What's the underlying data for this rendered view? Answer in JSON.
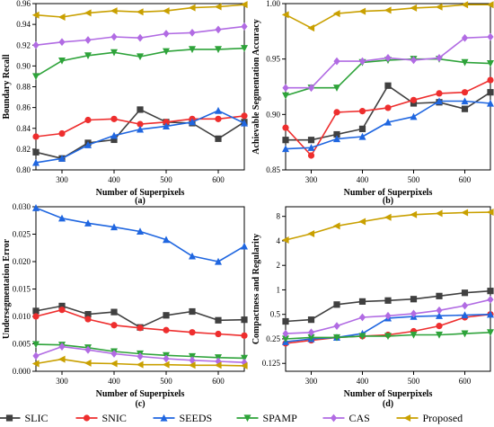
{
  "chart_data": [
    {
      "type": "line",
      "caption": "(a)",
      "xlabel": "Number of Superpixels",
      "ylabel": "Boundary Recall",
      "xlim": [
        250,
        650
      ],
      "ylim": [
        0.8,
        0.96
      ],
      "xticks": [
        300,
        400,
        500,
        600
      ],
      "yticks": [
        0.8,
        0.82,
        0.84,
        0.86,
        0.88,
        0.9,
        0.92,
        0.94,
        0.96
      ],
      "ytick_labels": [
        "0.80",
        "0.82",
        "0.84",
        "0.86",
        "0.88",
        "0.90",
        "0.92",
        "0.94",
        "0.96"
      ],
      "x": [
        250,
        300,
        350,
        400,
        450,
        500,
        550,
        600,
        650
      ],
      "series": [
        {
          "name": "SLIC",
          "values": [
            0.817,
            0.811,
            0.826,
            0.829,
            0.858,
            0.846,
            0.845,
            0.83,
            0.846
          ]
        },
        {
          "name": "SNIC",
          "values": [
            0.832,
            0.835,
            0.848,
            0.849,
            0.844,
            0.846,
            0.849,
            0.849,
            0.852
          ]
        },
        {
          "name": "SEEDS",
          "values": [
            0.807,
            0.811,
            0.824,
            0.833,
            0.839,
            0.842,
            0.846,
            0.857,
            0.845
          ]
        },
        {
          "name": "SPAMP",
          "values": [
            0.89,
            0.905,
            0.91,
            0.913,
            0.909,
            0.914,
            0.916,
            0.916,
            0.917
          ]
        },
        {
          "name": "CAS",
          "values": [
            0.92,
            0.923,
            0.925,
            0.928,
            0.927,
            0.931,
            0.932,
            0.935,
            0.938
          ]
        },
        {
          "name": "Proposed",
          "values": [
            0.949,
            0.947,
            0.951,
            0.953,
            0.952,
            0.953,
            0.956,
            0.957,
            0.959
          ]
        }
      ]
    },
    {
      "type": "line",
      "caption": "(b)",
      "xlabel": "Number of Superpixels",
      "ylabel": "Achievable Segmentation Accuracy",
      "xlim": [
        250,
        650
      ],
      "ylim": [
        0.85,
        1.0
      ],
      "xticks": [
        300,
        400,
        500,
        600
      ],
      "yticks": [
        0.85,
        0.9,
        0.95,
        1.0
      ],
      "ytick_labels": [
        "0.85",
        "0.90",
        "0.95",
        "1.00"
      ],
      "x": [
        250,
        300,
        350,
        400,
        450,
        500,
        550,
        600,
        650
      ],
      "series": [
        {
          "name": "SLIC",
          "values": [
            0.877,
            0.877,
            0.882,
            0.887,
            0.926,
            0.91,
            0.911,
            0.905,
            0.92
          ]
        },
        {
          "name": "SNIC",
          "values": [
            0.888,
            0.863,
            0.902,
            0.903,
            0.906,
            0.913,
            0.919,
            0.92,
            0.931
          ]
        },
        {
          "name": "SEEDS",
          "values": [
            0.869,
            0.87,
            0.878,
            0.88,
            0.893,
            0.898,
            0.912,
            0.912,
            0.91
          ]
        },
        {
          "name": "SPAMP",
          "values": [
            0.917,
            0.924,
            0.924,
            0.947,
            0.949,
            0.95,
            0.95,
            0.947,
            0.946
          ]
        },
        {
          "name": "CAS",
          "values": [
            0.924,
            0.924,
            0.948,
            0.948,
            0.951,
            0.949,
            0.951,
            0.969,
            0.97
          ]
        },
        {
          "name": "Proposed",
          "values": [
            0.99,
            0.978,
            0.991,
            0.993,
            0.994,
            0.996,
            0.997,
            0.999,
            0.999
          ]
        }
      ]
    },
    {
      "type": "line",
      "caption": "(c)",
      "xlabel": "Number of Superpixels",
      "ylabel": "Undersegmentation Error",
      "xlim": [
        250,
        650
      ],
      "ylim": [
        0,
        0.03
      ],
      "xticks": [
        300,
        400,
        500,
        600
      ],
      "yticks": [
        0.0,
        0.005,
        0.01,
        0.015,
        0.02,
        0.025,
        0.03
      ],
      "ytick_labels": [
        "0.000",
        "0.005",
        "0.010",
        "0.015",
        "0.020",
        "0.025",
        "0.030"
      ],
      "x": [
        250,
        300,
        350,
        400,
        450,
        500,
        550,
        600,
        650
      ],
      "series": [
        {
          "name": "SLIC",
          "values": [
            0.011,
            0.0119,
            0.0104,
            0.0108,
            0.008,
            0.0102,
            0.0109,
            0.0093,
            0.0094
          ]
        },
        {
          "name": "SNIC",
          "values": [
            0.01,
            0.0112,
            0.0095,
            0.0084,
            0.0079,
            0.0075,
            0.0071,
            0.0068,
            0.0065
          ]
        },
        {
          "name": "SEEDS",
          "values": [
            0.0298,
            0.0279,
            0.027,
            0.0263,
            0.0255,
            0.024,
            0.021,
            0.02,
            0.0228
          ]
        },
        {
          "name": "SPAMP",
          "values": [
            0.0049,
            0.0048,
            0.0043,
            0.0036,
            0.0032,
            0.0029,
            0.0027,
            0.0025,
            0.0024
          ]
        },
        {
          "name": "CAS",
          "values": [
            0.0028,
            0.0045,
            0.0039,
            0.0032,
            0.0027,
            0.0023,
            0.002,
            0.0018,
            0.0016
          ]
        },
        {
          "name": "Proposed",
          "values": [
            0.0014,
            0.0022,
            0.0015,
            0.0014,
            0.0012,
            0.0012,
            0.0011,
            0.0011,
            0.001
          ]
        }
      ]
    },
    {
      "type": "line",
      "caption": "(d)",
      "xlabel": "Number of Superpixels",
      "ylabel": "Compactness and Regularity",
      "xlim": [
        250,
        650
      ],
      "ylim": [
        0.1,
        10.5
      ],
      "yscale": "log",
      "xticks": [
        300,
        400,
        500,
        600
      ],
      "yticks": [
        0.125,
        0.25,
        0.5,
        1,
        2,
        4,
        8
      ],
      "ytick_labels": [
        "0.125",
        "0.25",
        "0.5",
        "1",
        "2",
        "4",
        "8"
      ],
      "x": [
        250,
        300,
        350,
        400,
        450,
        500,
        550,
        600,
        650
      ],
      "series": [
        {
          "name": "SLIC",
          "values": [
            0.41,
            0.43,
            0.66,
            0.72,
            0.74,
            0.77,
            0.84,
            0.92,
            0.97
          ]
        },
        {
          "name": "SNIC",
          "values": [
            0.22,
            0.24,
            0.26,
            0.27,
            0.28,
            0.31,
            0.36,
            0.46,
            0.5
          ]
        },
        {
          "name": "SEEDS",
          "values": [
            0.23,
            0.25,
            0.26,
            0.29,
            0.45,
            0.47,
            0.48,
            0.49,
            0.5
          ]
        },
        {
          "name": "SPAMP",
          "values": [
            0.25,
            0.26,
            0.26,
            0.27,
            0.27,
            0.28,
            0.28,
            0.29,
            0.3
          ]
        },
        {
          "name": "CAS",
          "values": [
            0.29,
            0.3,
            0.36,
            0.46,
            0.48,
            0.51,
            0.56,
            0.64,
            0.76
          ]
        },
        {
          "name": "Proposed",
          "values": [
            4.1,
            4.9,
            6.1,
            6.9,
            7.8,
            8.4,
            8.7,
            8.9,
            9.0
          ]
        }
      ]
    }
  ],
  "legend": {
    "placement": "bottom",
    "entries": [
      {
        "name": "SLIC",
        "color": "#404040",
        "marker": "square"
      },
      {
        "name": "SNIC",
        "color": "#ee2e2e",
        "marker": "circle"
      },
      {
        "name": "SEEDS",
        "color": "#1f66e0",
        "marker": "triangle"
      },
      {
        "name": "SPAMP",
        "color": "#2ea33a",
        "marker": "triangle-down"
      },
      {
        "name": "CAS",
        "color": "#b16be3",
        "marker": "diamond"
      },
      {
        "name": "Proposed",
        "color": "#c9a000",
        "marker": "triangle-left"
      }
    ]
  }
}
